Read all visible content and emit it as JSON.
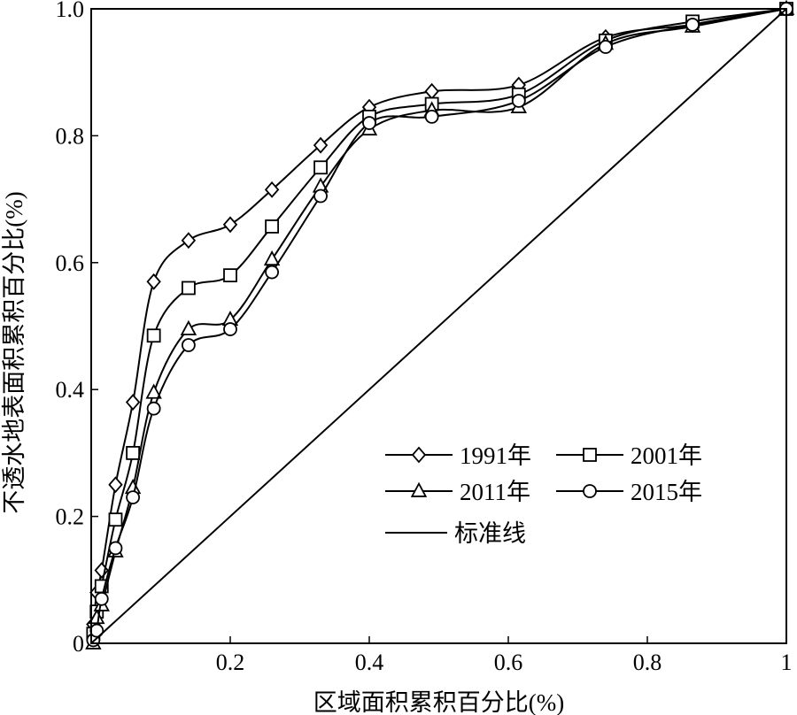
{
  "chart_data": {
    "type": "line",
    "xlabel": "区域面积累积百分比(%)",
    "ylabel": "不透水地表面积累积百分比(%)",
    "xlim": [
      0,
      1
    ],
    "ylim": [
      0,
      1
    ],
    "x_ticks": [
      {
        "value": 0.2,
        "label": "0.2"
      },
      {
        "value": 0.4,
        "label": "0.4"
      },
      {
        "value": 0.6,
        "label": "0.6"
      },
      {
        "value": 0.8,
        "label": "0.8"
      },
      {
        "value": 1.0,
        "label": "1"
      }
    ],
    "y_ticks": [
      {
        "value": 0,
        "label": "0"
      },
      {
        "value": 0.2,
        "label": "0.2"
      },
      {
        "value": 0.4,
        "label": "0.4"
      },
      {
        "value": 0.6,
        "label": "0.6"
      },
      {
        "value": 0.8,
        "label": "0.8"
      },
      {
        "value": 1.0,
        "label": "1.0"
      }
    ],
    "grid": false,
    "legend_position": "bottom-right",
    "series": [
      {
        "name": "1991年",
        "marker": "diamond",
        "points": [
          [
            0.003,
            0.03
          ],
          [
            0.008,
            0.08
          ],
          [
            0.015,
            0.115
          ],
          [
            0.035,
            0.25
          ],
          [
            0.06,
            0.38
          ],
          [
            0.09,
            0.57
          ],
          [
            0.14,
            0.635
          ],
          [
            0.2,
            0.66
          ],
          [
            0.26,
            0.715
          ],
          [
            0.33,
            0.785
          ],
          [
            0.4,
            0.845
          ],
          [
            0.49,
            0.87
          ],
          [
            0.615,
            0.88
          ],
          [
            0.74,
            0.955
          ],
          [
            0.865,
            0.975
          ],
          [
            1.0,
            1.0
          ]
        ]
      },
      {
        "name": "2001年",
        "marker": "square",
        "points": [
          [
            0.003,
            0.015
          ],
          [
            0.008,
            0.05
          ],
          [
            0.015,
            0.09
          ],
          [
            0.035,
            0.195
          ],
          [
            0.06,
            0.3
          ],
          [
            0.09,
            0.485
          ],
          [
            0.14,
            0.56
          ],
          [
            0.2,
            0.58
          ],
          [
            0.26,
            0.657
          ],
          [
            0.33,
            0.75
          ],
          [
            0.4,
            0.83
          ],
          [
            0.49,
            0.85
          ],
          [
            0.615,
            0.865
          ],
          [
            0.74,
            0.95
          ],
          [
            0.865,
            0.98
          ],
          [
            1.0,
            1.0
          ]
        ]
      },
      {
        "name": "2011年",
        "marker": "triangle",
        "points": [
          [
            0.003,
            0.0
          ],
          [
            0.008,
            0.04
          ],
          [
            0.015,
            0.06
          ],
          [
            0.035,
            0.145
          ],
          [
            0.06,
            0.245
          ],
          [
            0.09,
            0.395
          ],
          [
            0.14,
            0.495
          ],
          [
            0.2,
            0.51
          ],
          [
            0.26,
            0.605
          ],
          [
            0.33,
            0.72
          ],
          [
            0.4,
            0.81
          ],
          [
            0.49,
            0.84
          ],
          [
            0.615,
            0.845
          ],
          [
            0.74,
            0.945
          ],
          [
            0.865,
            0.972
          ],
          [
            1.0,
            1.0
          ]
        ]
      },
      {
        "name": "2015年",
        "marker": "circle",
        "points": [
          [
            0.003,
            0.005
          ],
          [
            0.008,
            0.02
          ],
          [
            0.015,
            0.07
          ],
          [
            0.035,
            0.15
          ],
          [
            0.06,
            0.23
          ],
          [
            0.09,
            0.37
          ],
          [
            0.14,
            0.47
          ],
          [
            0.2,
            0.495
          ],
          [
            0.26,
            0.585
          ],
          [
            0.33,
            0.705
          ],
          [
            0.4,
            0.82
          ],
          [
            0.49,
            0.83
          ],
          [
            0.615,
            0.855
          ],
          [
            0.74,
            0.94
          ],
          [
            0.865,
            0.975
          ],
          [
            1.0,
            1.0
          ]
        ]
      },
      {
        "name": "标准线",
        "marker": "none",
        "points": [
          [
            0,
            0
          ],
          [
            1,
            1
          ]
        ]
      }
    ]
  }
}
